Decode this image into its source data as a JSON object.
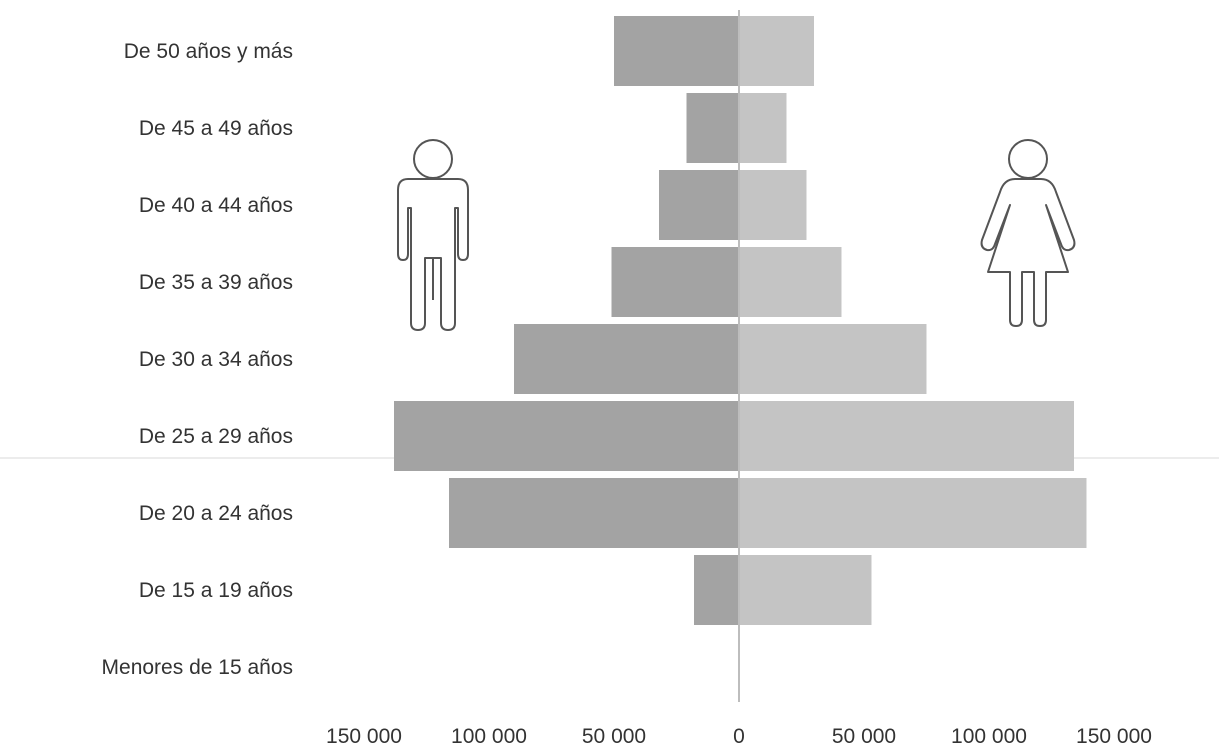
{
  "chart_data": {
    "type": "bar",
    "orientation": "horizontal",
    "layout": "population-pyramid",
    "categories": [
      "De 50 años y más",
      "De 45 a 49 años",
      "De 40 a 44 años",
      "De 35 a 39 años",
      "De 30 a 34 años",
      "De 25 a 29 años",
      "De 20 a 24 años",
      "De 15 a 19 años",
      "Menores de 15 años"
    ],
    "series": [
      {
        "side": "left",
        "values": [
          50000,
          21000,
          32000,
          51000,
          90000,
          138000,
          116000,
          18000,
          0
        ],
        "color": "#a3a3a3"
      },
      {
        "side": "right",
        "values": [
          30000,
          19000,
          27000,
          41000,
          75000,
          134000,
          139000,
          53000,
          0
        ],
        "color": "#c4c4c4"
      }
    ],
    "x_ticks": [
      {
        "value": -150000,
        "label": "150 000"
      },
      {
        "value": -100000,
        "label": "100 000"
      },
      {
        "value": -50000,
        "label": "50 000"
      },
      {
        "value": 0,
        "label": "0"
      },
      {
        "value": 50000,
        "label": "50 000"
      },
      {
        "value": 100000,
        "label": "100 000"
      },
      {
        "value": 150000,
        "label": "150 000"
      }
    ],
    "xlim": [
      -150000,
      150000
    ],
    "grid": false,
    "legend": "icons",
    "legend_icons": [
      "male-figure-icon",
      "female-figure-icon"
    ]
  }
}
